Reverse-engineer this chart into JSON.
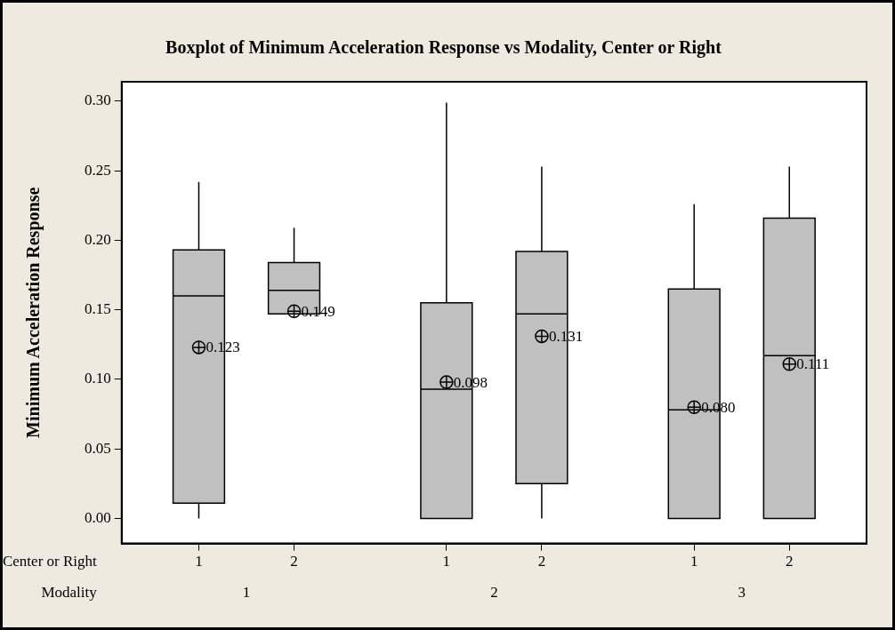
{
  "chart_data": {
    "type": "box",
    "title": "Boxplot of Minimum Acceleration Response vs Modality, Center or Right",
    "ylabel": "Minimum Acceleration Response",
    "xlabel": "Center or Right",
    "categories": [
      "1",
      "2",
      "1",
      "2",
      "1",
      "2"
    ],
    "annotations": [
      "Modality",
      "1",
      "2",
      "3"
    ],
    "color": "#c0c0c0",
    "boxes": [
      {
        "low": 0,
        "q1": 0.011,
        "median": 0.16,
        "q3": 0.193,
        "high": 0.242,
        "mean": 0.123
      },
      {
        "low": 0.147,
        "q1": 0.147,
        "median": 0.164,
        "q3": 0.184,
        "high": 0.209,
        "mean": 0.149
      },
      {
        "low": 0,
        "q1": 0,
        "median": 0.093,
        "q3": 0.155,
        "high": 0.299,
        "mean": 0.098
      },
      {
        "low": 0,
        "q1": 0.025,
        "median": 0.147,
        "q3": 0.192,
        "high": 0.253,
        "mean": 0.131
      },
      {
        "low": 0,
        "q1": 0,
        "median": 0.078,
        "q3": 0.165,
        "high": 0.226,
        "mean": 0.08
      },
      {
        "low": 0,
        "q1": 0,
        "median": 0.117,
        "q3": 0.216,
        "high": 0.253,
        "mean": 0.111
      }
    ],
    "value_labels": [
      "0.123",
      "0.149",
      "0.098",
      "0.131",
      "0.080",
      "0.111"
    ],
    "ylim": [
      -0.018,
      0.314
    ],
    "yticks": [
      {
        "value": 0,
        "label": "0.00"
      },
      {
        "value": 0.05,
        "label": "0.05"
      },
      {
        "value": 0.1,
        "label": "0.10"
      },
      {
        "value": 0.15,
        "label": "0.15"
      },
      {
        "value": 0.2,
        "label": "0.20"
      },
      {
        "value": 0.25,
        "label": "0.25"
      },
      {
        "value": 0.3,
        "label": "0.30"
      }
    ]
  }
}
